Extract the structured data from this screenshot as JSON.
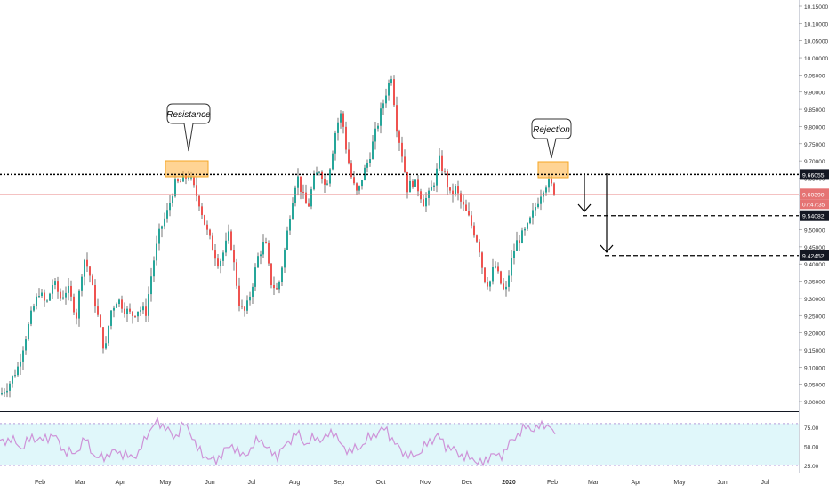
{
  "chart_data": {
    "type": "candlestick",
    "instrument": "",
    "colors": {
      "up": "#26a69a",
      "down": "#ef5350",
      "wick": "#555555",
      "rsi_line": "#ce93d8",
      "rsi_band": "#e0f7fa",
      "resistance_box": "#ffb74d",
      "current_price_tag": "#e57373",
      "level_tag": "#131722"
    },
    "price_axis": {
      "ticks": [
        "10.15000",
        "10.10000",
        "10.05000",
        "10.00000",
        "9.95000",
        "9.90000",
        "9.85000",
        "9.80000",
        "9.75000",
        "9.70000",
        "9.65000",
        "9.60000",
        "9.55000",
        "9.50000",
        "9.45000",
        "9.40000",
        "9.35000",
        "9.30000",
        "9.25000",
        "9.20000",
        "9.15000",
        "9.10000",
        "9.05000",
        "9.00000"
      ],
      "ylim": [
        8.97,
        10.17
      ]
    },
    "time_axis": {
      "labels": [
        "Feb",
        "Mar",
        "Apr",
        "May",
        "Jun",
        "Jul",
        "Aug",
        "Sep",
        "Oct",
        "Nov",
        "Dec",
        "2020",
        "Feb",
        "Mar",
        "Apr",
        "May",
        "Jun",
        "Jul"
      ]
    },
    "close_series": [
      [
        0,
        9.02
      ],
      [
        10,
        9.05
      ],
      [
        20,
        9.1
      ],
      [
        28,
        9.18
      ],
      [
        36,
        9.26
      ],
      [
        44,
        9.32
      ],
      [
        52,
        9.28
      ],
      [
        60,
        9.35
      ],
      [
        68,
        9.3
      ],
      [
        76,
        9.33
      ],
      [
        86,
        9.25
      ],
      [
        94,
        9.42
      ],
      [
        100,
        9.38
      ],
      [
        106,
        9.3
      ],
      [
        112,
        9.22
      ],
      [
        118,
        9.14
      ],
      [
        124,
        9.26
      ],
      [
        132,
        9.3
      ],
      [
        140,
        9.27
      ],
      [
        148,
        9.25
      ],
      [
        156,
        9.27
      ],
      [
        164,
        9.26
      ],
      [
        172,
        9.4
      ],
      [
        180,
        9.5
      ],
      [
        188,
        9.55
      ],
      [
        196,
        9.63
      ],
      [
        204,
        9.64
      ],
      [
        212,
        9.66
      ],
      [
        218,
        9.62
      ],
      [
        224,
        9.58
      ],
      [
        232,
        9.5
      ],
      [
        240,
        9.44
      ],
      [
        246,
        9.4
      ],
      [
        252,
        9.44
      ],
      [
        258,
        9.49
      ],
      [
        264,
        9.38
      ],
      [
        270,
        9.27
      ],
      [
        276,
        9.26
      ],
      [
        282,
        9.32
      ],
      [
        290,
        9.42
      ],
      [
        298,
        9.47
      ],
      [
        304,
        9.35
      ],
      [
        312,
        9.32
      ],
      [
        320,
        9.44
      ],
      [
        328,
        9.58
      ],
      [
        334,
        9.66
      ],
      [
        340,
        9.6
      ],
      [
        346,
        9.56
      ],
      [
        352,
        9.64
      ],
      [
        360,
        9.68
      ],
      [
        366,
        9.62
      ],
      [
        372,
        9.7
      ],
      [
        378,
        9.8
      ],
      [
        384,
        9.84
      ],
      [
        390,
        9.72
      ],
      [
        396,
        9.64
      ],
      [
        402,
        9.6
      ],
      [
        408,
        9.66
      ],
      [
        414,
        9.7
      ],
      [
        420,
        9.76
      ],
      [
        428,
        9.84
      ],
      [
        434,
        9.9
      ],
      [
        440,
        9.95
      ],
      [
        446,
        9.8
      ],
      [
        452,
        9.72
      ],
      [
        458,
        9.62
      ],
      [
        464,
        9.64
      ],
      [
        470,
        9.62
      ],
      [
        476,
        9.58
      ],
      [
        482,
        9.6
      ],
      [
        488,
        9.64
      ],
      [
        494,
        9.7
      ],
      [
        500,
        9.66
      ],
      [
        506,
        9.6
      ],
      [
        512,
        9.62
      ],
      [
        518,
        9.58
      ],
      [
        526,
        9.54
      ],
      [
        532,
        9.5
      ],
      [
        538,
        9.46
      ],
      [
        544,
        9.36
      ],
      [
        550,
        9.34
      ],
      [
        556,
        9.4
      ],
      [
        562,
        9.35
      ],
      [
        568,
        9.31
      ],
      [
        574,
        9.4
      ],
      [
        580,
        9.46
      ],
      [
        586,
        9.48
      ],
      [
        592,
        9.5
      ],
      [
        598,
        9.54
      ],
      [
        604,
        9.58
      ],
      [
        610,
        9.62
      ],
      [
        616,
        9.64
      ],
      [
        622,
        9.62
      ],
      [
        625,
        9.6
      ]
    ],
    "horizontal_levels": [
      {
        "value": "9.66055",
        "style": "dotted"
      },
      {
        "value": "9.54082",
        "style": "dashed"
      },
      {
        "value": "9.42452",
        "style": "dashed"
      }
    ],
    "current_price": {
      "value": "9.60390",
      "countdown": "07:47:35"
    },
    "annotations": [
      {
        "label": "Resistance"
      },
      {
        "label": "Rejection"
      }
    ],
    "rsi": {
      "ticks": [
        "75.00",
        "50.00",
        "25.00"
      ],
      "ylim": [
        18,
        88
      ],
      "band": [
        25,
        80
      ],
      "values": [
        [
          0,
          55
        ],
        [
          12,
          60
        ],
        [
          24,
          48
        ],
        [
          36,
          62
        ],
        [
          48,
          58
        ],
        [
          60,
          66
        ],
        [
          72,
          44
        ],
        [
          84,
          40
        ],
        [
          96,
          60
        ],
        [
          108,
          34
        ],
        [
          120,
          38
        ],
        [
          132,
          44
        ],
        [
          144,
          36
        ],
        [
          156,
          40
        ],
        [
          166,
          68
        ],
        [
          176,
          82
        ],
        [
          186,
          76
        ],
        [
          196,
          60
        ],
        [
          206,
          80
        ],
        [
          214,
          70
        ],
        [
          222,
          46
        ],
        [
          232,
          36
        ],
        [
          242,
          30
        ],
        [
          252,
          44
        ],
        [
          262,
          52
        ],
        [
          272,
          36
        ],
        [
          282,
          46
        ],
        [
          292,
          62
        ],
        [
          302,
          44
        ],
        [
          312,
          38
        ],
        [
          324,
          56
        ],
        [
          334,
          68
        ],
        [
          344,
          52
        ],
        [
          354,
          62
        ],
        [
          364,
          58
        ],
        [
          374,
          72
        ],
        [
          384,
          50
        ],
        [
          394,
          44
        ],
        [
          404,
          48
        ],
        [
          414,
          60
        ],
        [
          424,
          68
        ],
        [
          434,
          74
        ],
        [
          442,
          56
        ],
        [
          452,
          44
        ],
        [
          462,
          36
        ],
        [
          472,
          42
        ],
        [
          482,
          56
        ],
        [
          492,
          64
        ],
        [
          502,
          50
        ],
        [
          512,
          44
        ],
        [
          522,
          36
        ],
        [
          532,
          34
        ],
        [
          542,
          26
        ],
        [
          552,
          40
        ],
        [
          562,
          36
        ],
        [
          572,
          52
        ],
        [
          582,
          66
        ],
        [
          592,
          76
        ],
        [
          602,
          72
        ],
        [
          612,
          80
        ],
        [
          620,
          74
        ],
        [
          625,
          58
        ]
      ]
    }
  }
}
